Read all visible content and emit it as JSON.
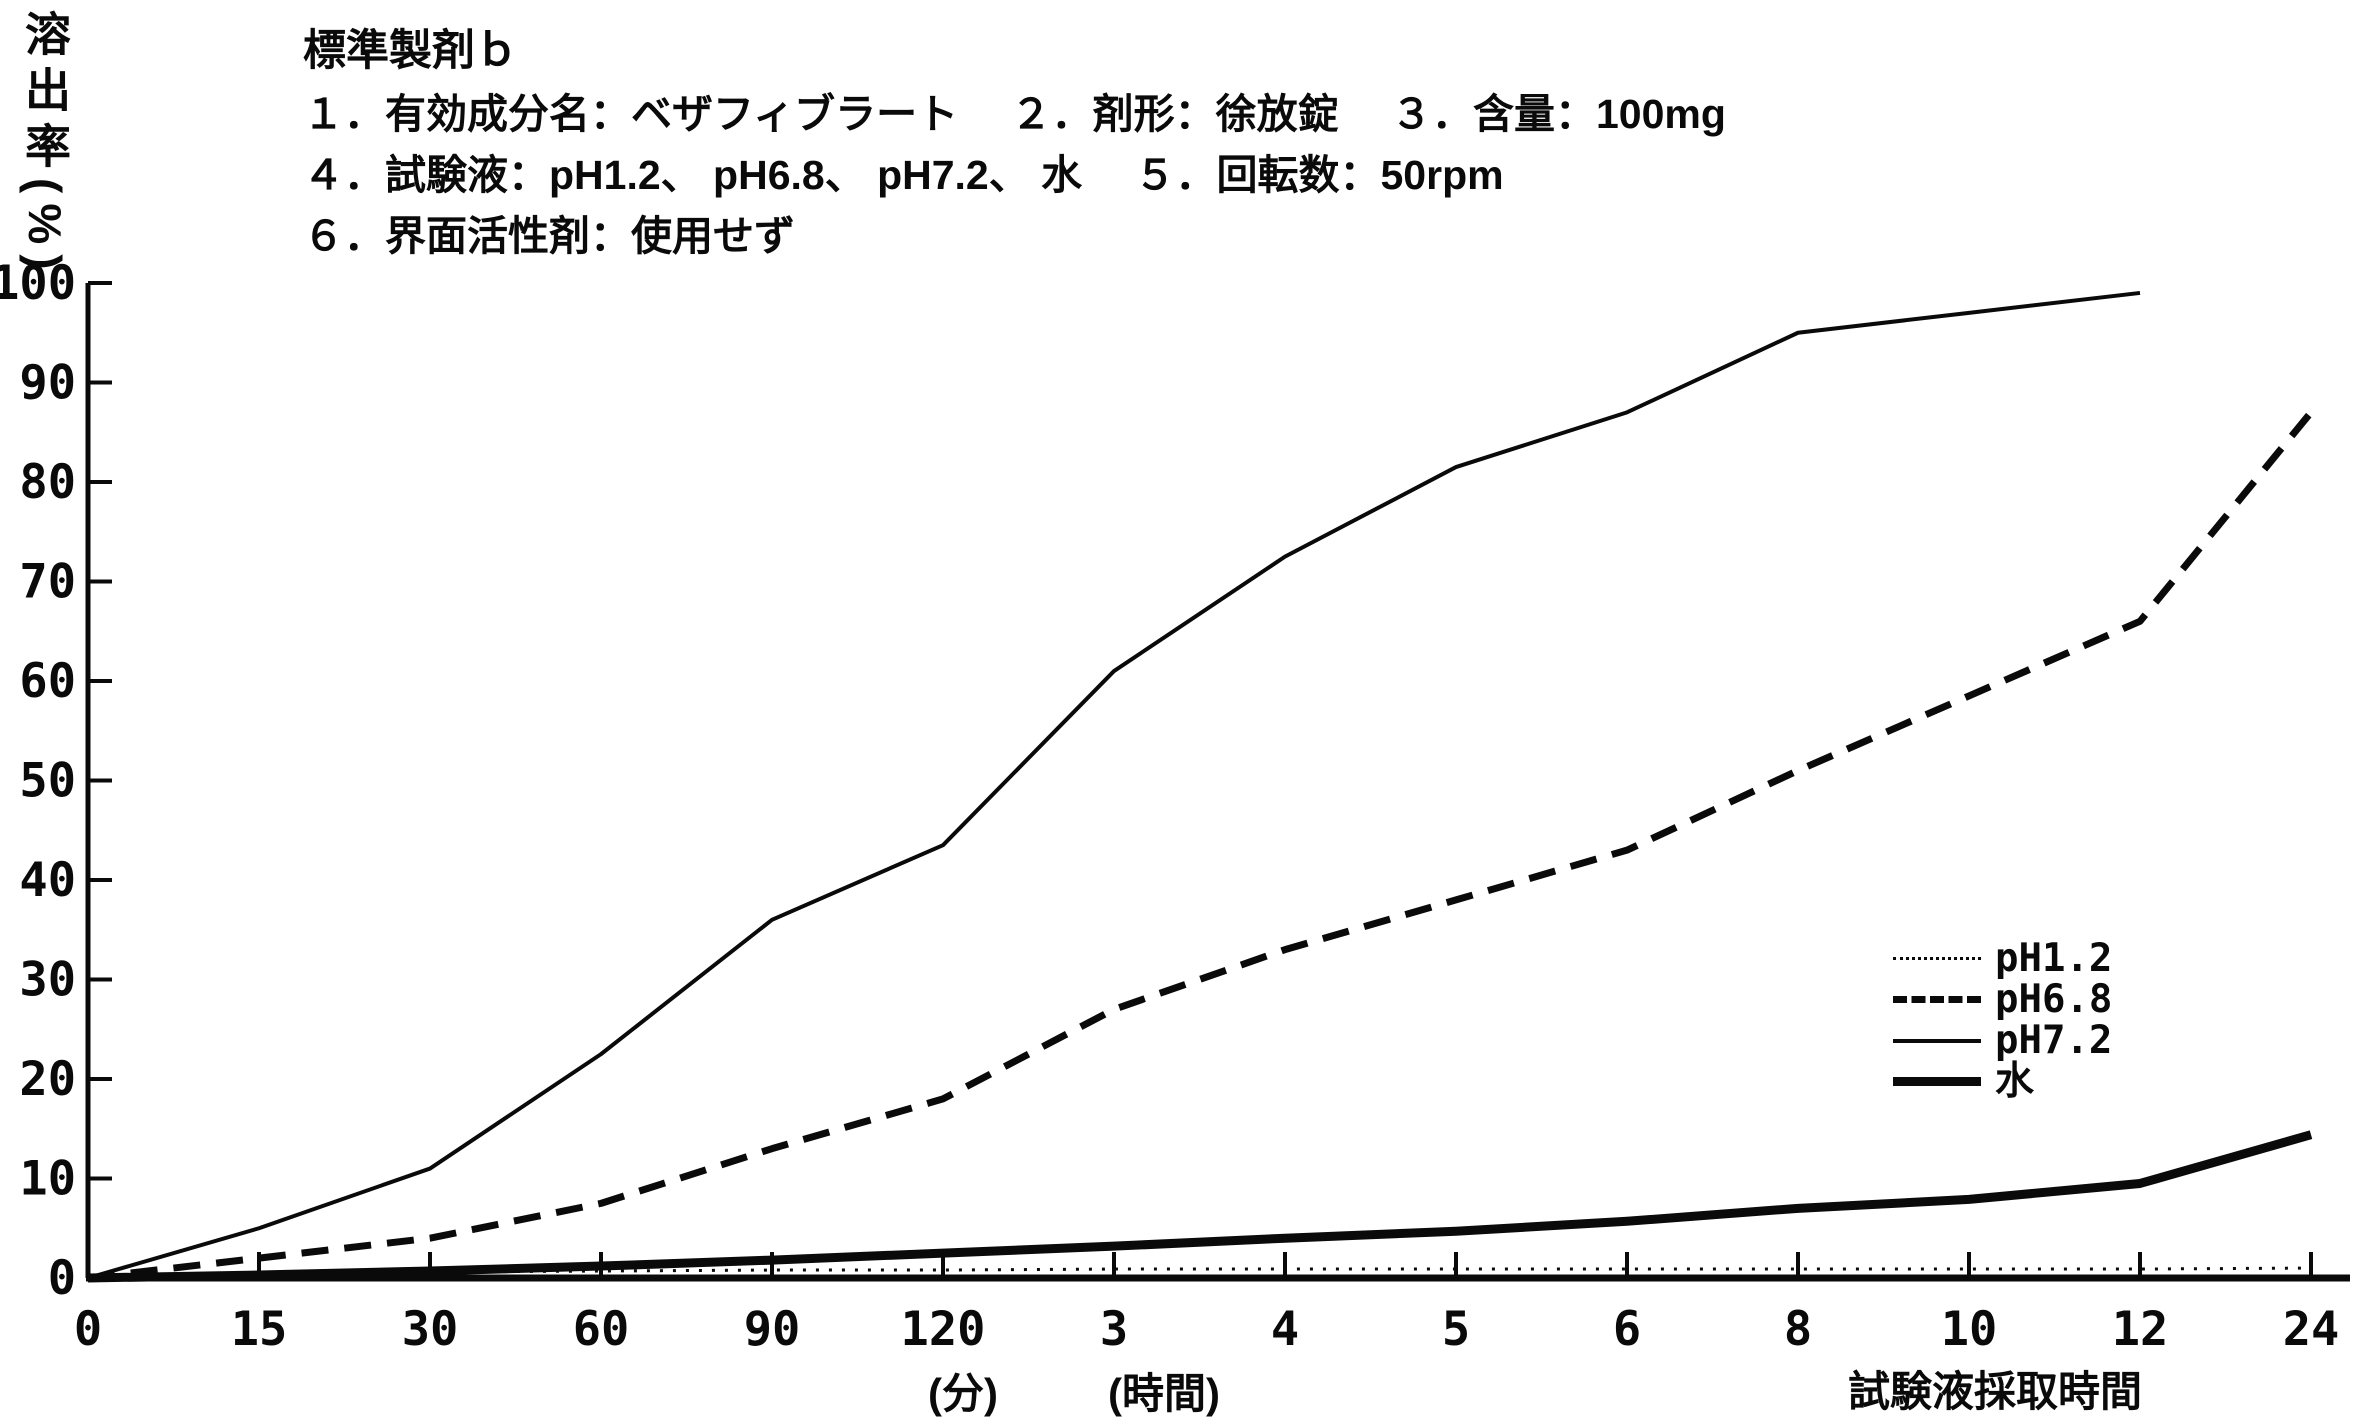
{
  "header": {
    "title": "標準製剤ｂ",
    "line2": "１．有効成分名：ベザフィブラート　 ２．剤形：徐放錠　 ３．含量：100mg",
    "line3": "４．試験液：pH1.2、 pH6.8、 pH7.2、 水　 ５．回転数：50rpm",
    "line4": "６．界面活性剤：使用せず"
  },
  "y_axis": {
    "title_vertical": "溶出率(%)",
    "tick_labels": [
      "100",
      "90",
      "80",
      "70",
      "60",
      "50",
      "40",
      "30",
      "20",
      "10",
      "0"
    ]
  },
  "x_axis": {
    "tick_labels": [
      "0",
      "15",
      "30",
      "60",
      "90",
      "120",
      "3",
      "4",
      "5",
      "6",
      "8",
      "10",
      "12",
      "24"
    ],
    "unit_minutes": "(分)",
    "unit_hours": "(時間)",
    "axis_caption": "試験液採取時間"
  },
  "legend": {
    "items": [
      {
        "label": "pH1.2",
        "style": "dotted"
      },
      {
        "label": "pH6.8",
        "style": "dashed"
      },
      {
        "label": "pH7.2",
        "style": "thin"
      },
      {
        "label": "水",
        "style": "thick"
      }
    ]
  },
  "chart_data": {
    "type": "line",
    "title": "標準製剤ｂ 溶出曲線",
    "categories": [
      "0",
      "15",
      "30",
      "60",
      "90",
      "120",
      "3",
      "4",
      "5",
      "6",
      "8",
      "10",
      "12",
      "24"
    ],
    "x_scale_note": "0-120 = 分 (minutes), 3-24 = 時間 (hours), equally spaced ticks",
    "ylabel": "溶出率(%)",
    "ylim": [
      0,
      100
    ],
    "grid": false,
    "legend_position": "right-middle",
    "series": [
      {
        "name": "pH1.2",
        "line_style": "dotted",
        "values": [
          0,
          0.4,
          0.6,
          0.7,
          0.8,
          0.8,
          0.9,
          0.9,
          0.9,
          0.9,
          0.9,
          0.9,
          0.9,
          1.0
        ]
      },
      {
        "name": "pH6.8",
        "line_style": "dashed",
        "values": [
          0,
          2,
          4,
          7.5,
          13,
          18,
          27,
          33,
          38,
          43,
          51,
          58.5,
          66,
          87
        ]
      },
      {
        "name": "pH7.2",
        "line_style": "solid-thin",
        "values": [
          0,
          5,
          11,
          22.5,
          36,
          43.5,
          61,
          72.5,
          81.5,
          87,
          95,
          97,
          99,
          null
        ]
      },
      {
        "name": "水",
        "line_style": "solid-thick",
        "values": [
          0,
          0.3,
          0.7,
          1.2,
          1.8,
          2.5,
          3.2,
          4.0,
          4.7,
          5.7,
          7.0,
          7.9,
          9.5,
          14.4
        ]
      }
    ]
  }
}
